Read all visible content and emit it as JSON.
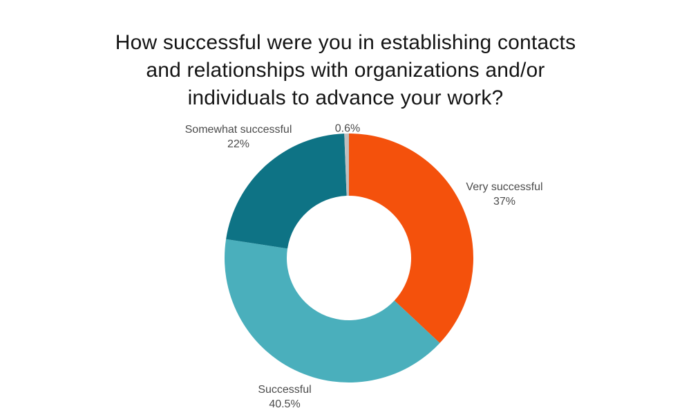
{
  "title": {
    "line1": "How successful were you in establishing contacts",
    "line2": "and relationships with organizations and/or",
    "line3": "individuals to advance your work?"
  },
  "chart_data": {
    "type": "pie",
    "subtype": "donut",
    "title": "How successful were you in establishing contacts and relationships with organizations and/or individuals to advance your work?",
    "legend_position": "none",
    "labels_position": "outside",
    "start_angle_deg": 0,
    "direction": "clockwise",
    "segments": [
      {
        "label": "Very successful",
        "value": 37,
        "display": "37%",
        "color": "#F4510C"
      },
      {
        "label": "Successful",
        "value": 40.5,
        "display": "40.5%",
        "color": "#4AAFBC"
      },
      {
        "label": "Somewhat successful",
        "value": 22,
        "display": "22%",
        "color": "#0E7385"
      },
      {
        "label": "",
        "value": 0.6,
        "display": "0.6%",
        "color": "#BFBFBF"
      }
    ]
  },
  "colors": {
    "background": "#FFFFFF",
    "title_text": "#141414",
    "label_text": "#4B4B4B"
  }
}
